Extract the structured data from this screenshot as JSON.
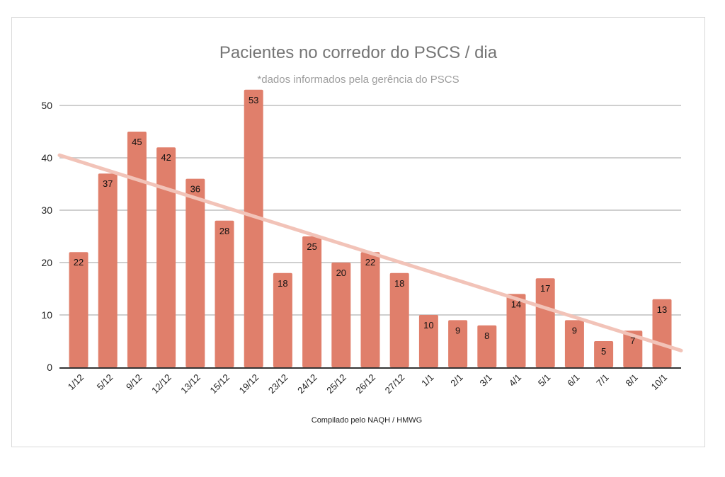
{
  "chart_data": {
    "type": "bar",
    "title": "Pacientes no  corredor do PSCS / dia",
    "subtitle": "*dados informados pela gerência do PSCS",
    "xlabel": "Compilado pelo NAQH / HMWG",
    "ylabel": "",
    "categories": [
      "1/12",
      "5/12",
      "9/12",
      "12/12",
      "13/12",
      "15/12",
      "19/12",
      "23/12",
      "24/12",
      "25/12",
      "26/12",
      "27/12",
      "1/1",
      "2/1",
      "3/1",
      "4/1",
      "5/1",
      "6/1",
      "7/1",
      "8/1",
      "10/1"
    ],
    "values": [
      22,
      37,
      45,
      42,
      36,
      28,
      53,
      18,
      25,
      20,
      22,
      18,
      10,
      9,
      8,
      14,
      17,
      9,
      5,
      7,
      13
    ],
    "data_labels": [
      "22",
      "37",
      "45",
      "42",
      "36",
      "28",
      "53",
      "18",
      "25",
      "20",
      "22",
      "18",
      "10",
      "9",
      "8",
      "14",
      "17",
      "9",
      "5",
      "7",
      "13"
    ],
    "ylim": [
      0,
      52
    ],
    "yticks": [
      0,
      10,
      20,
      30,
      40,
      50
    ],
    "ytick_labels": [
      "0",
      "10",
      "20",
      "30",
      "40",
      "50"
    ],
    "grid": true,
    "legend": "none",
    "trendline": {
      "type": "linear",
      "start_value": 40.5,
      "end_value": 3.2
    },
    "colors": {
      "bar": "#e07f6b",
      "trendline": "#f2c3b8",
      "grid": "#cfcfcf",
      "axis": "#333333"
    }
  }
}
